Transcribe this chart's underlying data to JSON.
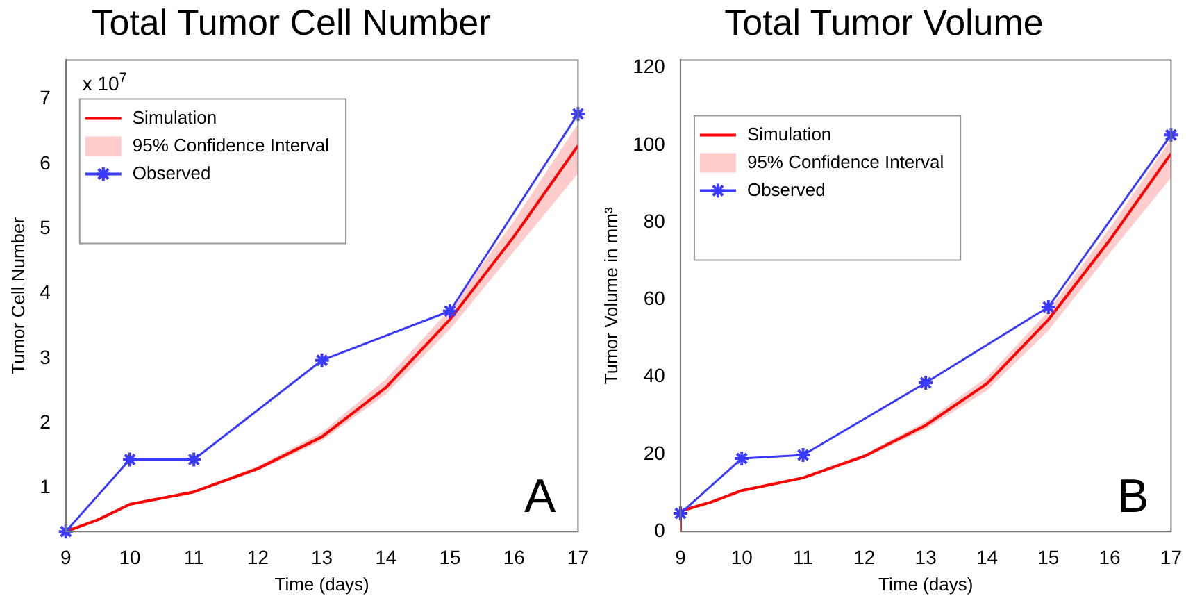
{
  "chart_data": [
    {
      "type": "line",
      "title": "Total Tumor Cell Number",
      "xlabel": "Time (days)",
      "ylabel": "Tumor Cell Number",
      "xlim": [
        9,
        17
      ],
      "xticks": [
        9,
        10,
        11,
        12,
        13,
        14,
        15,
        16,
        17
      ],
      "ylim": [
        0.33,
        7.6
      ],
      "yticks": [
        1,
        2,
        3,
        4,
        5,
        6,
        7
      ],
      "grid": false,
      "legend": "top left",
      "annotations": [
        "x 10$^{7}$",
        "A"
      ],
      "series": [
        {
          "name": "Simulation",
          "type": "line",
          "color": "#ff0000",
          "marker": "none",
          "x": [
            9,
            9.5,
            10,
            11,
            12,
            13,
            14,
            15,
            16,
            17
          ],
          "values": [
            0.33,
            0.51,
            0.75,
            0.94,
            1.3,
            1.79,
            2.55,
            3.6,
            4.88,
            6.28
          ],
          "lower": [
            0.33,
            0.5,
            0.74,
            0.93,
            1.27,
            1.73,
            2.45,
            3.45,
            4.65,
            5.85
          ],
          "upper": [
            0.34,
            0.52,
            0.76,
            0.96,
            1.34,
            1.86,
            2.68,
            3.76,
            5.12,
            6.62
          ]
        },
        {
          "name": "95% Confidence Interval",
          "type": "area",
          "color": "#ffcccc"
        },
        {
          "name": "Observed",
          "type": "line",
          "color": "#3a3aff",
          "marker": "cross",
          "x": [
            9,
            10,
            11,
            13,
            15,
            17
          ],
          "values": [
            0.33,
            1.44,
            1.44,
            2.97,
            3.73,
            6.77
          ]
        }
      ]
    },
    {
      "type": "line",
      "title": "Total Tumor Volume",
      "xlabel": "Time (days)",
      "ylabel": "Tumor Volume in mm³",
      "xlim": [
        9,
        17
      ],
      "xticks": [
        9,
        10,
        11,
        12,
        13,
        14,
        15,
        16,
        17
      ],
      "ylim": [
        0,
        122
      ],
      "yticks": [
        0,
        20,
        40,
        60,
        80,
        100,
        120
      ],
      "grid": false,
      "legend": "top left",
      "annotations": [
        "B"
      ],
      "series": [
        {
          "name": "Simulation",
          "type": "line",
          "color": "#ff0000",
          "marker": "none",
          "x": [
            9,
            9,
            9.5,
            10,
            11,
            12,
            13,
            14,
            15,
            16,
            17
          ],
          "values": [
            0,
            5.3,
            7.6,
            10.6,
            13.9,
            19.5,
            27.5,
            38.3,
            54.8,
            75.4,
            97.8
          ],
          "lower": [
            0,
            5.2,
            7.5,
            10.4,
            13.6,
            19,
            26.5,
            36.5,
            52,
            72,
            91.5
          ],
          "upper": [
            0,
            5.4,
            7.7,
            10.8,
            14.2,
            20,
            28.5,
            40,
            57,
            78.5,
            101.5
          ]
        },
        {
          "name": "95% Confidence Interval",
          "type": "area",
          "color": "#ffcccc"
        },
        {
          "name": "Observed",
          "type": "line",
          "color": "#3a3aff",
          "marker": "cross",
          "x": [
            9,
            10,
            11,
            13,
            15,
            17
          ],
          "values": [
            4.7,
            18.9,
            19.8,
            38.5,
            58.1,
            102.6
          ]
        }
      ]
    }
  ]
}
